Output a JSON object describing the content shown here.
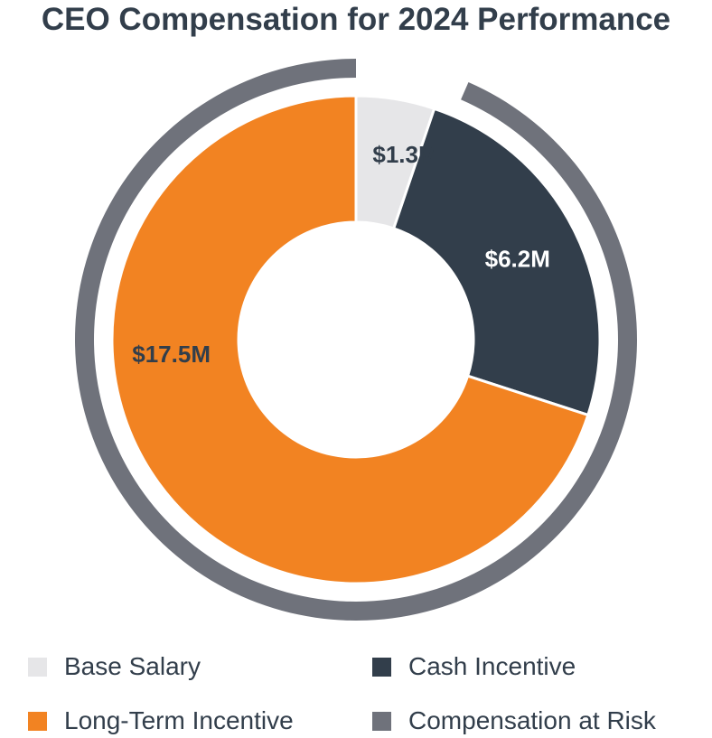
{
  "chart_data": {
    "type": "pie",
    "title": "CEO Compensation for 2024 Performance",
    "donut": true,
    "slices": [
      {
        "label": "Base Salary",
        "value": 1.3,
        "value_label": "$1.3M",
        "color": "#e6e6e8",
        "label_color": "#323e4b"
      },
      {
        "label": "Cash Incentive",
        "value": 6.2,
        "value_label": "$6.2M",
        "color": "#323e4b",
        "label_color": "#ffffff"
      },
      {
        "label": "Long-Term Incentive",
        "value": 17.5,
        "value_label": "$17.5M",
        "color": "#f28322",
        "label_color": "#323e4b"
      }
    ],
    "outer_ring": {
      "label": "Compensation at Risk",
      "color": "#6f727b",
      "covers": [
        "Cash Incentive",
        "Long-Term Incentive"
      ]
    },
    "legend": {
      "position": "bottom",
      "entries": [
        {
          "label": "Base Salary",
          "color": "#e6e6e8"
        },
        {
          "label": "Cash Incentive",
          "color": "#323e4b"
        },
        {
          "label": "Long-Term Incentive",
          "color": "#f28322"
        },
        {
          "label": "Compensation at Risk",
          "color": "#6f727b"
        }
      ]
    }
  }
}
